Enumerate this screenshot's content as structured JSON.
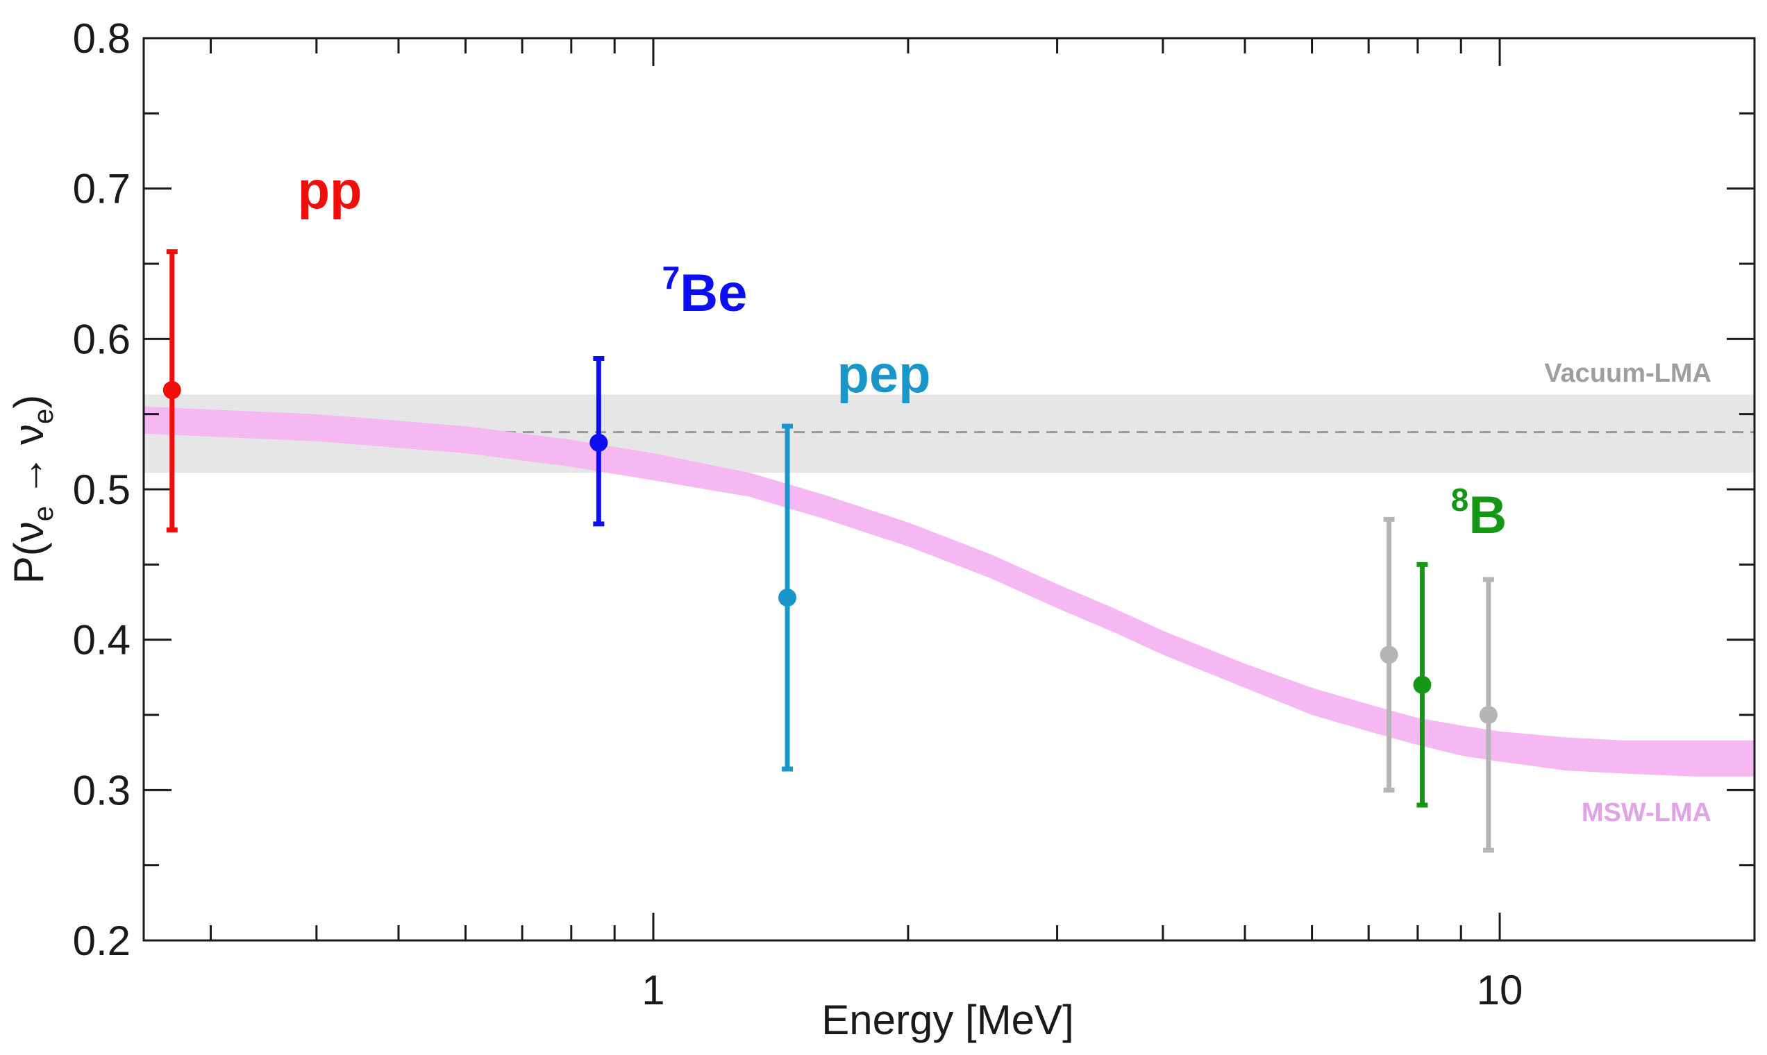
{
  "chart_data": {
    "type": "scatter",
    "xscale": "log",
    "xlim": [
      0.25,
      20
    ],
    "ylim": [
      0.2,
      0.8
    ],
    "xlabel": "Energy [MeV]",
    "ylabel": {
      "prefix": "P(",
      "nu": "ν",
      "sub1": "e",
      "arrow": "→",
      "sub2": "e",
      "suffix": ")"
    },
    "xticks": [
      {
        "value": 1,
        "label": "1"
      },
      {
        "value": 10,
        "label": "10"
      }
    ],
    "yticks": [
      {
        "value": 0.2,
        "label": "0.2"
      },
      {
        "value": 0.3,
        "label": "0.3"
      },
      {
        "value": 0.4,
        "label": "0.4"
      },
      {
        "value": 0.5,
        "label": "0.5"
      },
      {
        "value": 0.6,
        "label": "0.6"
      },
      {
        "value": 0.7,
        "label": "0.7"
      },
      {
        "value": 0.8,
        "label": "0.8"
      }
    ],
    "vacuum_band": {
      "name": "Vacuum-LMA",
      "center": 0.538,
      "low": 0.511,
      "high": 0.563,
      "color": "#e6e6e6",
      "line_color": "#999999",
      "label_color": "#9e9e9e"
    },
    "msw_band": {
      "name": "MSW-LMA",
      "color": "#f5b8f2",
      "label_color": "#e0a3e4",
      "x": [
        0.25,
        0.4,
        0.6,
        0.8,
        1.0,
        1.3,
        1.6,
        2.0,
        2.5,
        3.0,
        3.5,
        4.0,
        5.0,
        6.0,
        7.0,
        8.0,
        9.0,
        10.0,
        12.0,
        14.0,
        17.0,
        20.0
      ],
      "center": [
        0.546,
        0.541,
        0.533,
        0.524,
        0.515,
        0.503,
        0.488,
        0.47,
        0.449,
        0.429,
        0.413,
        0.398,
        0.376,
        0.359,
        0.348,
        0.339,
        0.333,
        0.329,
        0.324,
        0.322,
        0.321,
        0.321
      ],
      "halfwidth": [
        0.009,
        0.009,
        0.009,
        0.009,
        0.009,
        0.008,
        0.008,
        0.008,
        0.008,
        0.008,
        0.008,
        0.008,
        0.008,
        0.009,
        0.009,
        0.009,
        0.01,
        0.01,
        0.011,
        0.011,
        0.012,
        0.012
      ]
    },
    "series": [
      {
        "name": "pp",
        "label": "pp",
        "sup": "",
        "color": "#f20d0d",
        "x": 0.27,
        "y": 0.566,
        "ylo": 0.473,
        "yhi": 0.658
      },
      {
        "name": "7Be",
        "label": "Be",
        "sup": "7",
        "color": "#0d0df2",
        "x": 0.862,
        "y": 0.531,
        "ylo": 0.477,
        "yhi": 0.587
      },
      {
        "name": "pep",
        "label": "pep",
        "sup": "",
        "color": "#1a96c8",
        "x": 1.44,
        "y": 0.428,
        "ylo": 0.314,
        "yhi": 0.542
      },
      {
        "name": "8B-gray-1",
        "label": "",
        "sup": "",
        "color": "#b5b5b5",
        "x": 7.4,
        "y": 0.39,
        "ylo": 0.3,
        "yhi": 0.48
      },
      {
        "name": "8B",
        "label": "B",
        "sup": "8",
        "color": "#159615",
        "x": 8.1,
        "y": 0.37,
        "ylo": 0.29,
        "yhi": 0.45
      },
      {
        "name": "8B-gray-2",
        "label": "",
        "sup": "",
        "color": "#b5b5b5",
        "x": 9.7,
        "y": 0.35,
        "ylo": 0.26,
        "yhi": 0.44
      }
    ]
  }
}
